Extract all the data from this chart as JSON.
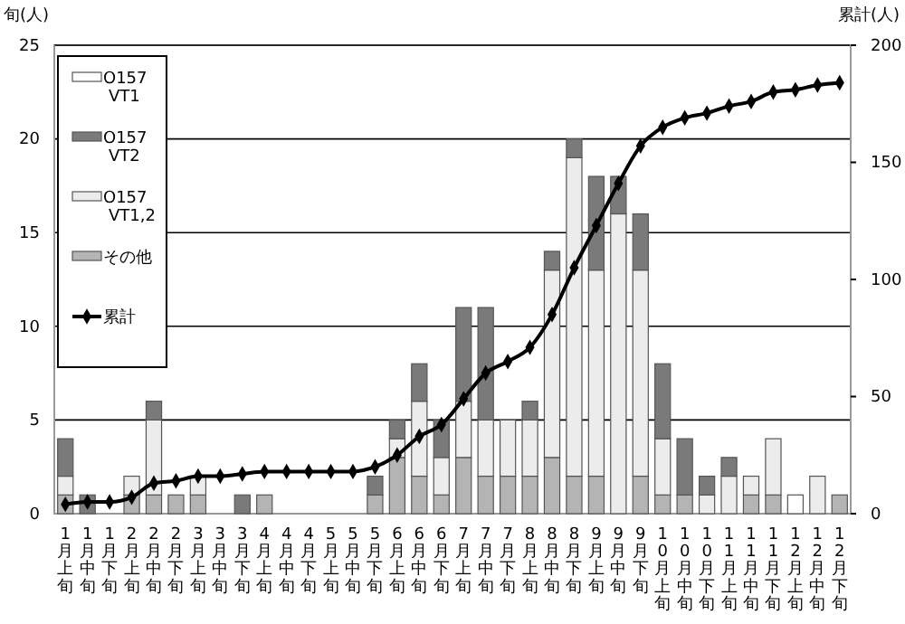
{
  "chart_data": {
    "type": "bar",
    "stacked": true,
    "ylabel": "旬(人)",
    "y2label": "累計(人)",
    "categories": [
      "1月上旬",
      "1月中旬",
      "1月下旬",
      "2月上旬",
      "2月中旬",
      "2月下旬",
      "3月上旬",
      "3月中旬",
      "3月下旬",
      "4月上旬",
      "4月中旬",
      "4月下旬",
      "5月上旬",
      "5月中旬",
      "5月下旬",
      "6月上旬",
      "6月中旬",
      "6月下旬",
      "7月上旬",
      "7月中旬",
      "7月下旬",
      "8月上旬",
      "8月中旬",
      "8月下旬",
      "9月上旬",
      "9月中旬",
      "9月下旬",
      "10月上旬",
      "10月中旬",
      "10月下旬",
      "11月上旬",
      "11月中旬",
      "11月下旬",
      "12月上旬",
      "12月中旬",
      "12月下旬"
    ],
    "series": [
      {
        "name": "その他",
        "color": "#b4b4b4",
        "values": [
          1,
          0,
          0,
          1,
          1,
          1,
          1,
          0,
          0,
          1,
          0,
          0,
          0,
          0,
          1,
          3,
          2,
          1,
          3,
          2,
          2,
          2,
          3,
          2,
          2,
          0,
          2,
          1,
          1,
          0,
          0,
          1,
          1,
          0,
          0,
          1
        ]
      },
      {
        "name": "O157 VT1,2",
        "color": "#ececec",
        "values": [
          1,
          0,
          0,
          1,
          4,
          0,
          1,
          0,
          0,
          0,
          0,
          0,
          0,
          0,
          0,
          1,
          4,
          2,
          3,
          3,
          3,
          3,
          10,
          17,
          11,
          16,
          11,
          3,
          0,
          1,
          2,
          1,
          3,
          0,
          2,
          0
        ]
      },
      {
        "name": "O157 VT2",
        "color": "#7a7a7a",
        "values": [
          2,
          1,
          0,
          0,
          1,
          0,
          0,
          0,
          1,
          0,
          0,
          0,
          0,
          0,
          1,
          1,
          2,
          2,
          5,
          6,
          0,
          1,
          1,
          1,
          5,
          2,
          3,
          4,
          3,
          1,
          1,
          0,
          0,
          0,
          0,
          0
        ]
      },
      {
        "name": "O157 VT1",
        "color": "#ffffff",
        "values": [
          0,
          0,
          0,
          0,
          0,
          0,
          0,
          0,
          0,
          0,
          0,
          0,
          0,
          0,
          0,
          0,
          0,
          0,
          0,
          0,
          0,
          0,
          0,
          0,
          0,
          0,
          0,
          0,
          0,
          0,
          0,
          0,
          0,
          1,
          0,
          0
        ]
      },
      {
        "name": "累計",
        "type": "line",
        "axis": "y2",
        "color": "#000000",
        "values": [
          4,
          5,
          5,
          7,
          13,
          14,
          16,
          16,
          17,
          18,
          18,
          18,
          18,
          18,
          20,
          25,
          33,
          38,
          49,
          60,
          65,
          71,
          85,
          105,
          123,
          141,
          157,
          165,
          169,
          171,
          174,
          176,
          180,
          181,
          183,
          184
        ]
      }
    ],
    "ylim": [
      0,
      25
    ],
    "yticks": [
      0,
      5,
      10,
      15,
      20,
      25
    ],
    "y2lim": [
      0,
      200
    ],
    "y2ticks": [
      0,
      50,
      100,
      150,
      200
    ],
    "grid": "y",
    "legend": "top left",
    "marker": "diamond",
    "line_style": "solid"
  }
}
